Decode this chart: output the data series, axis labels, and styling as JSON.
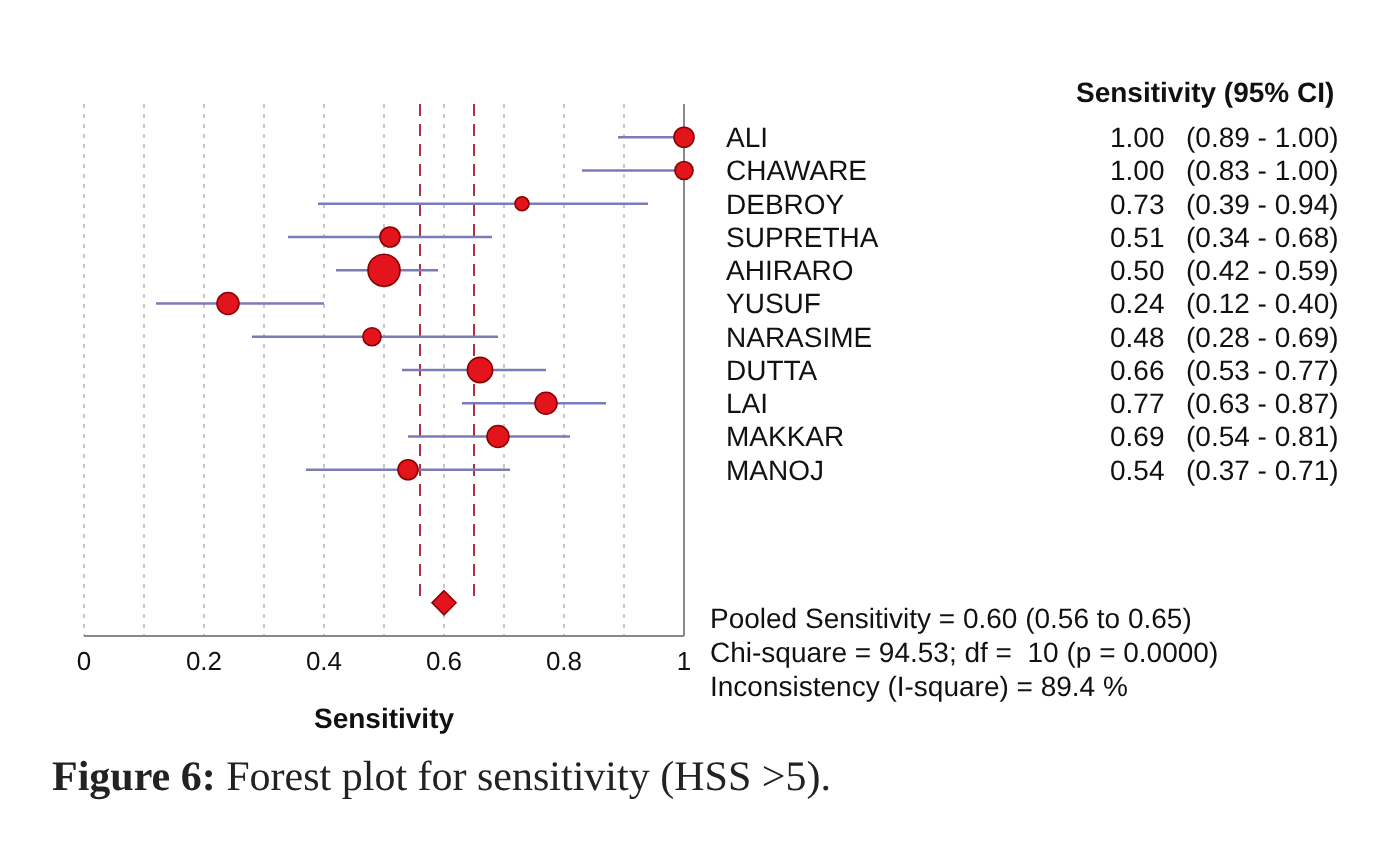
{
  "chart_data": {
    "type": "bubble",
    "title": "Figure 6: Forest plot for sensitivity (HSS >5).",
    "xlabel": "Sensitivity",
    "categories": [
      "ALI",
      "CHAWARE",
      "DEBROY",
      "SUPRETHA",
      "AHIRARO",
      "YUSUF",
      "NARASIME",
      "DUTTA",
      "LAI",
      "MAKKAR",
      "MANOJ",
      null,
      null,
      null,
      null
    ],
    "series": [
      {
        "color": "#e3141b",
        "marker": "circle",
        "values": [
          1.0,
          1.0,
          0.73,
          0.51,
          0.5,
          0.24,
          0.48,
          0.66,
          0.77,
          0.69,
          0.54,
          null,
          null,
          null,
          null
        ],
        "errors": [
          [
            0.89,
            1.0
          ],
          [
            0.83,
            1.0
          ],
          [
            0.39,
            0.94
          ],
          [
            0.34,
            0.68
          ],
          [
            0.42,
            0.59
          ],
          [
            0.12,
            0.4
          ],
          [
            0.28,
            0.69
          ],
          [
            0.53,
            0.77
          ],
          [
            0.63,
            0.87
          ],
          [
            0.54,
            0.81
          ],
          [
            0.37,
            0.71
          ],
          null,
          null,
          null,
          null
        ],
        "sizes": [
          0.39,
          0.32,
          0.19,
          0.39,
          1,
          0.47,
          0.32,
          0.62,
          0.47,
          0.47,
          0.39,
          null,
          null,
          null,
          null
        ],
        "value_labels": [
          "1.00 (0.89 - 1.00)",
          "1.00 (0.83 - 1.00)",
          "0.73 (0.39 - 0.94)",
          "0.51 (0.34 - 0.68)",
          "0.50 (0.42 - 0.59)",
          "0.24 (0.12 - 0.40)",
          "0.48 (0.28 - 0.69)",
          "0.66 (0.53 - 0.77)",
          "0.77 (0.63 - 0.87)",
          "0.69 (0.54 - 0.81)",
          "0.54 (0.37 - 0.71)",
          null,
          null,
          null,
          null
        ]
      },
      {
        "type": "scatter",
        "color": "#e3141b",
        "marker": "diamond",
        "values": [
          null,
          null,
          null,
          null,
          null,
          null,
          null,
          null,
          null,
          null,
          null,
          null,
          null,
          null,
          0.6
        ]
      }
    ],
    "orientation": "horizontal",
    "ref_lines": [
      {
        "axis": "x",
        "value": 0.56,
        "color": "#b03040",
        "line_style": "dashed"
      },
      {
        "axis": "x",
        "value": 0.65,
        "color": "#b03040",
        "line_style": "dashed"
      }
    ],
    "xlim": [
      0,
      1
    ],
    "xticks": [
      0,
      {
        "value": 0.1,
        "label": null
      },
      0.2,
      {
        "value": 0.3,
        "label": null
      },
      0.4,
      {
        "value": 0.5,
        "label": null
      },
      0.6,
      {
        "value": 0.7,
        "label": null
      },
      0.8,
      {
        "value": 0.9,
        "label": null
      },
      1
    ],
    "grid": "x",
    "annotations": [
      "Sensitivity (95% CI)",
      "Pooled Sensitivity = 0.60 (0.56 to 0.65)",
      "Chi-square = 94.53; df =  10 (p = 0.0000)",
      "Inconsistency (I-square) = 89.4 %"
    ]
  }
}
